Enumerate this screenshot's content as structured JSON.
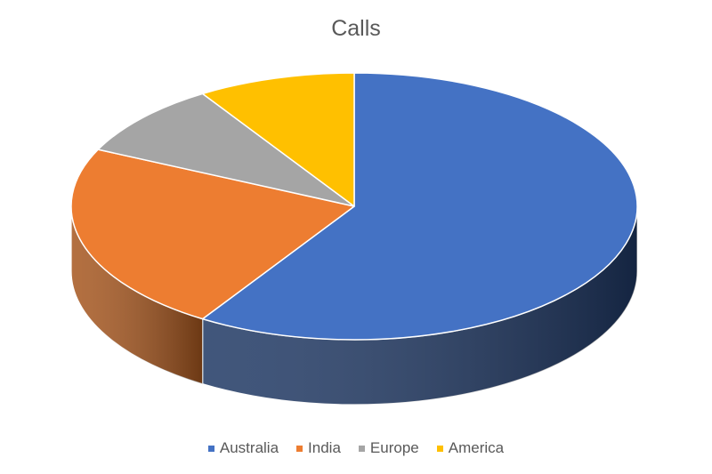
{
  "chart_data": {
    "type": "pie",
    "title": "Calls",
    "categories": [
      "Australia",
      "India",
      "Europe",
      "America"
    ],
    "values": [
      59,
      23,
      9,
      9
    ],
    "colors": [
      "#4472C4",
      "#ED7D31",
      "#A5A5A5",
      "#FFC000"
    ],
    "side_colors": [
      "#1F3864",
      "#A6561E",
      "#6E6E6E",
      "#B08300"
    ],
    "style": "3d",
    "legend_position": "bottom"
  }
}
